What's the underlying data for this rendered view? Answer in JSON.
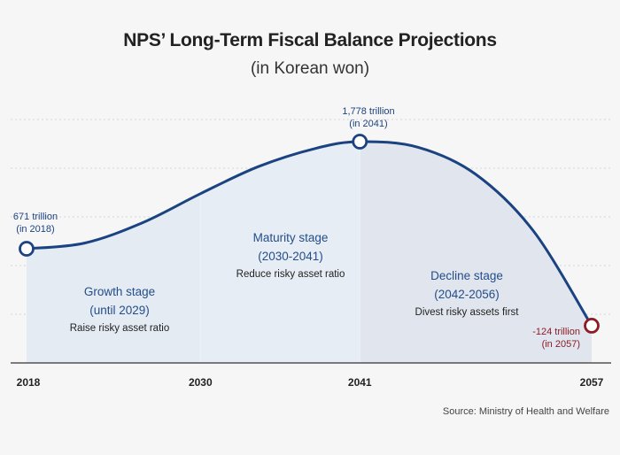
{
  "title": "NPS’ Long-Term Fiscal Balance Projections",
  "subtitle": "(in Korean won)",
  "source": "Source: Ministry of Health and Welfare",
  "colors": {
    "line": "#1b4281",
    "accent_text": "#244d8a",
    "negative": "#8a1c27",
    "area": "#e3e9f1",
    "grid": "#d6d6d6",
    "axis": "#333333"
  },
  "chart_data": {
    "type": "line",
    "title": "NPS’ Long-Term Fiscal Balance Projections",
    "subtitle": "(in Korean won)",
    "unit": "trillion won",
    "x_ticks": [
      "2018",
      "2030",
      "2041",
      "2057"
    ],
    "xlim": [
      2018,
      2057
    ],
    "ylim": [
      -300,
      2050
    ],
    "series": [
      {
        "name": "Fiscal balance",
        "x": [
          2018,
          2022,
          2026,
          2030,
          2034,
          2038,
          2041,
          2045,
          2049,
          2053,
          2057
        ],
        "values": [
          671,
          730,
          940,
          1240,
          1520,
          1710,
          1778,
          1720,
          1440,
          850,
          -124
        ]
      }
    ],
    "markers": [
      {
        "x": 2018,
        "y": 671,
        "label1": "671 trillion",
        "label2": "(in 2018)",
        "tone": "positive"
      },
      {
        "x": 2041,
        "y": 1778,
        "label1": "1,778 trillion",
        "label2": "(in 2041)",
        "tone": "positive"
      },
      {
        "x": 2057,
        "y": -124,
        "label1": "-124 trillion",
        "label2": "(in 2057)",
        "tone": "negative"
      }
    ],
    "stages": [
      {
        "start": 2018,
        "end": 2030,
        "title": "Growth stage",
        "period": "(until 2029)",
        "note": "Raise risky asset ratio",
        "shade": "#e4ebf3"
      },
      {
        "start": 2030,
        "end": 2041,
        "title": "Maturity stage",
        "period": "(2030-2041)",
        "note": "Reduce risky asset ratio",
        "shade": "#e7edf4"
      },
      {
        "start": 2041,
        "end": 2057,
        "title": "Decline stage",
        "period": "(2042-2056)",
        "note": "Divest risky assets first",
        "shade": "#e1e6ee"
      }
    ]
  }
}
